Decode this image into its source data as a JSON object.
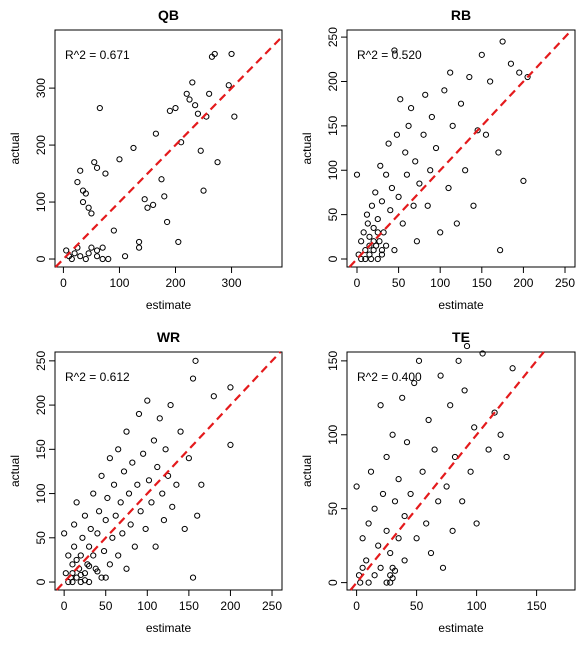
{
  "chart_data": [
    {
      "type": "scatter",
      "title": "QB",
      "xlabel": "estimate",
      "ylabel": "actual",
      "annotation": "R^2 = 0.671",
      "color": "#000000",
      "line_color": "#e41a1c",
      "xlim": [
        -15,
        390
      ],
      "ylim": [
        -14,
        402
      ],
      "xticks": [
        0,
        100,
        200,
        300
      ],
      "yticks": [
        0,
        100,
        200,
        300
      ],
      "x": [
        5,
        10,
        15,
        20,
        25,
        30,
        30,
        35,
        35,
        40,
        45,
        45,
        50,
        55,
        60,
        60,
        65,
        70,
        75,
        80,
        90,
        100,
        110,
        125,
        135,
        135,
        145,
        150,
        160,
        165,
        175,
        180,
        185,
        190,
        200,
        205,
        210,
        220,
        225,
        230,
        235,
        240,
        245,
        250,
        255,
        260,
        265,
        270,
        275,
        295,
        300,
        305,
        50,
        25,
        40,
        60,
        70
      ],
      "values": [
        15,
        5,
        0,
        10,
        135,
        155,
        5,
        120,
        100,
        115,
        90,
        10,
        80,
        170,
        160,
        5,
        265,
        20,
        150,
        0,
        50,
        175,
        5,
        195,
        20,
        30,
        105,
        90,
        95,
        220,
        140,
        110,
        65,
        260,
        265,
        30,
        205,
        290,
        280,
        310,
        270,
        255,
        190,
        120,
        250,
        290,
        355,
        360,
        170,
        305,
        360,
        250,
        20,
        20,
        0,
        15,
        0
      ]
    },
    {
      "type": "scatter",
      "title": "RB",
      "xlabel": "estimate",
      "ylabel": "actual",
      "annotation": "R^2 = 0.520",
      "color": "#000000",
      "line_color": "#e41a1c",
      "xlim": [
        -12,
        262
      ],
      "ylim": [
        -9,
        258
      ],
      "xticks": [
        0,
        50,
        100,
        150,
        200,
        250
      ],
      "yticks": [
        0,
        50,
        100,
        150,
        200,
        250
      ],
      "x": [
        0,
        2,
        5,
        5,
        8,
        10,
        10,
        12,
        13,
        15,
        15,
        17,
        18,
        20,
        20,
        22,
        23,
        25,
        25,
        27,
        28,
        30,
        30,
        32,
        35,
        35,
        38,
        40,
        42,
        45,
        45,
        48,
        50,
        52,
        55,
        58,
        60,
        62,
        65,
        68,
        70,
        72,
        75,
        80,
        82,
        85,
        88,
        90,
        95,
        100,
        105,
        110,
        112,
        115,
        120,
        125,
        130,
        135,
        140,
        145,
        150,
        155,
        160,
        170,
        172,
        175,
        185,
        195,
        200,
        205,
        20,
        25,
        30,
        15
      ],
      "values": [
        95,
        5,
        0,
        20,
        30,
        10,
        0,
        50,
        40,
        5,
        25,
        0,
        60,
        10,
        35,
        75,
        15,
        0,
        45,
        20,
        105,
        5,
        65,
        30,
        95,
        15,
        130,
        55,
        80,
        235,
        10,
        140,
        70,
        180,
        40,
        120,
        95,
        150,
        170,
        60,
        110,
        20,
        85,
        140,
        185,
        60,
        100,
        160,
        125,
        30,
        190,
        80,
        210,
        150,
        40,
        175,
        100,
        205,
        60,
        145,
        230,
        140,
        200,
        120,
        10,
        245,
        220,
        210,
        88,
        205,
        20,
        30,
        10,
        15
      ]
    },
    {
      "type": "scatter",
      "title": "WR",
      "xlabel": "estimate",
      "ylabel": "actual",
      "annotation": "R^2 = 0.612",
      "color": "#000000",
      "line_color": "#e41a1c",
      "xlim": [
        -11,
        262
      ],
      "ylim": [
        -9,
        260
      ],
      "xticks": [
        0,
        50,
        100,
        150,
        200,
        250
      ],
      "yticks": [
        0,
        50,
        100,
        150,
        200,
        250
      ],
      "x": [
        0,
        2,
        5,
        5,
        8,
        10,
        10,
        12,
        12,
        15,
        15,
        18,
        20,
        20,
        22,
        25,
        25,
        28,
        30,
        30,
        32,
        35,
        35,
        38,
        40,
        42,
        45,
        45,
        48,
        50,
        52,
        55,
        55,
        58,
        60,
        62,
        65,
        65,
        68,
        70,
        72,
        75,
        75,
        78,
        80,
        82,
        85,
        88,
        90,
        92,
        95,
        98,
        100,
        102,
        105,
        108,
        110,
        112,
        115,
        118,
        120,
        122,
        125,
        128,
        130,
        135,
        140,
        145,
        150,
        155,
        155,
        158,
        160,
        165,
        180,
        200,
        200,
        10,
        15,
        20,
        25,
        30,
        40,
        50
      ],
      "values": [
        55,
        10,
        0,
        30,
        5,
        0,
        20,
        40,
        65,
        5,
        90,
        15,
        0,
        30,
        50,
        10,
        75,
        20,
        0,
        40,
        60,
        30,
        100,
        15,
        55,
        80,
        5,
        120,
        35,
        70,
        95,
        20,
        140,
        50,
        110,
        75,
        30,
        150,
        90,
        55,
        125,
        15,
        170,
        100,
        65,
        135,
        40,
        110,
        190,
        80,
        145,
        60,
        205,
        115,
        90,
        160,
        40,
        130,
        185,
        100,
        70,
        150,
        120,
        200,
        85,
        110,
        170,
        60,
        140,
        230,
        5,
        250,
        75,
        110,
        210,
        155,
        220,
        10,
        25,
        8,
        2,
        18,
        12,
        5
      ]
    },
    {
      "type": "scatter",
      "title": "TE",
      "xlabel": "estimate",
      "ylabel": "actual",
      "annotation": "R^2 = 0.400",
      "color": "#000000",
      "line_color": "#e41a1c",
      "xlim": [
        -8,
        182
      ],
      "ylim": [
        -5,
        156
      ],
      "xticks": [
        0,
        50,
        100,
        150
      ],
      "yticks": [
        0,
        50,
        100,
        150
      ],
      "x": [
        0,
        2,
        3,
        5,
        5,
        8,
        10,
        10,
        12,
        15,
        15,
        18,
        20,
        20,
        22,
        25,
        25,
        25,
        28,
        28,
        30,
        30,
        32,
        35,
        35,
        38,
        40,
        40,
        42,
        45,
        48,
        50,
        52,
        55,
        58,
        60,
        62,
        65,
        68,
        70,
        72,
        75,
        78,
        80,
        82,
        85,
        88,
        90,
        92,
        95,
        98,
        100,
        105,
        110,
        115,
        120,
        125,
        130,
        28,
        30,
        32
      ],
      "values": [
        65,
        5,
        0,
        10,
        30,
        15,
        40,
        0,
        75,
        5,
        50,
        25,
        120,
        10,
        60,
        0,
        35,
        85,
        5,
        20,
        10,
        100,
        55,
        30,
        70,
        125,
        45,
        15,
        95,
        60,
        135,
        30,
        150,
        75,
        40,
        110,
        20,
        90,
        55,
        140,
        10,
        65,
        120,
        35,
        85,
        150,
        55,
        130,
        160,
        75,
        105,
        40,
        155,
        90,
        115,
        100,
        85,
        145,
        0,
        3,
        8
      ]
    }
  ]
}
